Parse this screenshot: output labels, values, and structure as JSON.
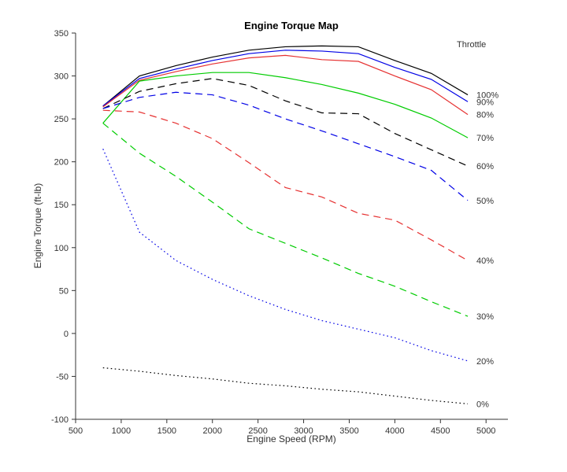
{
  "chart_data": {
    "type": "line",
    "title": "Engine Torque Map",
    "xlabel": "Engine Speed (RPM)",
    "ylabel": "Engine Torque (ft-lb)",
    "legend_title": "Throttle",
    "xlim": [
      500,
      5240
    ],
    "ylim": [
      -100,
      350
    ],
    "xticks": [
      500,
      1000,
      1500,
      2000,
      2500,
      3000,
      3500,
      4000,
      4500,
      5000
    ],
    "yticks": [
      -100,
      -50,
      0,
      50,
      100,
      150,
      200,
      250,
      300,
      350
    ],
    "x": [
      800,
      1200,
      1600,
      2000,
      2400,
      2800,
      3200,
      3600,
      4000,
      4400,
      4800
    ],
    "series": [
      {
        "name": "100%",
        "color": "#000000",
        "style": "solid",
        "values": [
          265,
          300,
          312,
          322,
          330,
          334,
          335,
          334,
          318,
          303,
          278
        ]
      },
      {
        "name": "90%",
        "color": "#0000e6",
        "style": "solid",
        "values": [
          265,
          297,
          308,
          318,
          326,
          330,
          329,
          326,
          310,
          296,
          270
        ]
      },
      {
        "name": "80%",
        "color": "#e63232",
        "style": "solid",
        "values": [
          264,
          295,
          305,
          314,
          321,
          324,
          319,
          317,
          300,
          284,
          255
        ]
      },
      {
        "name": "70%",
        "color": "#00cc00",
        "style": "solid",
        "values": [
          245,
          294,
          300,
          304,
          304,
          298,
          290,
          280,
          267,
          251,
          228
        ]
      },
      {
        "name": "60%",
        "color": "#000000",
        "style": "dashed",
        "values": [
          262,
          282,
          291,
          297,
          289,
          271,
          257,
          256,
          233,
          214,
          195
        ]
      },
      {
        "name": "50%",
        "color": "#0000e6",
        "style": "dashed",
        "values": [
          262,
          275,
          281,
          278,
          266,
          250,
          236,
          221,
          206,
          190,
          155
        ]
      },
      {
        "name": "40%",
        "color": "#e63232",
        "style": "dashed",
        "values": [
          260,
          258,
          245,
          227,
          199,
          170,
          159,
          140,
          132,
          109,
          85
        ]
      },
      {
        "name": "30%",
        "color": "#00cc00",
        "style": "dashed",
        "values": [
          245,
          210,
          183,
          153,
          122,
          105,
          88,
          70,
          55,
          37,
          20
        ]
      },
      {
        "name": "20%",
        "color": "#0000e6",
        "style": "dotted",
        "values": [
          215,
          118,
          85,
          63,
          44,
          28,
          15,
          5,
          -5,
          -20,
          -32
        ]
      },
      {
        "name": "0%",
        "color": "#000000",
        "style": "dotted",
        "values": [
          -40,
          -44,
          -49,
          -53,
          -58,
          -61,
          -65,
          -68,
          -73,
          -78,
          -82
        ]
      }
    ],
    "axis_color": "#333333",
    "background": "#ffffff"
  }
}
